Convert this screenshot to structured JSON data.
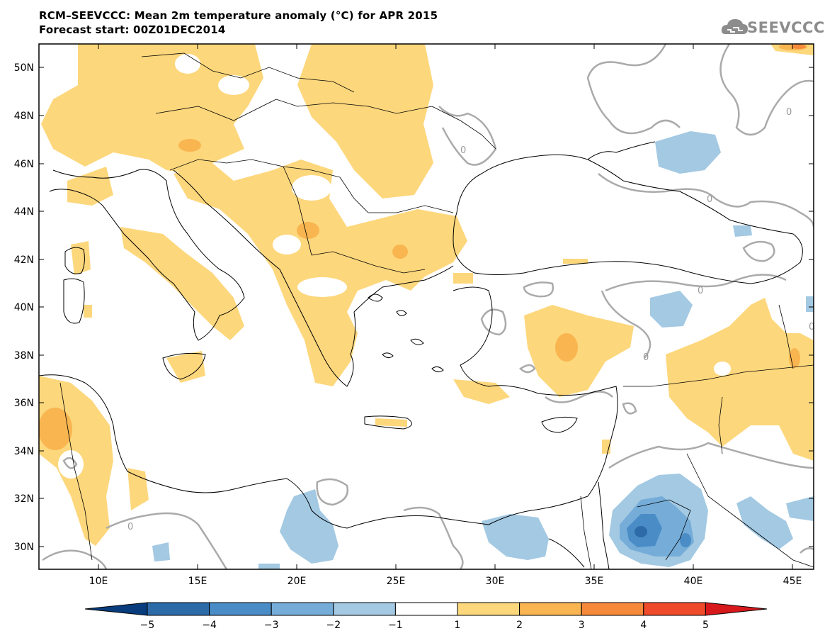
{
  "title": {
    "line1": "RCM–SEEVCCC: Mean 2m temperature anomaly (°C) for APR 2015",
    "line2": "Forecast start: 00Z01DEC2014"
  },
  "logo": {
    "text": "SEEVCCC",
    "icon": "cloud-icon"
  },
  "axes": {
    "lat_labels": [
      "50N",
      "48N",
      "46N",
      "44N",
      "42N",
      "40N",
      "38N",
      "36N",
      "34N",
      "32N",
      "30N"
    ],
    "lon_labels": [
      "10E",
      "15E",
      "20E",
      "25E",
      "30E",
      "35E",
      "40E",
      "45E"
    ]
  },
  "contour_labels": [
    "0",
    "0",
    "0",
    "0",
    "0",
    "0",
    "0"
  ],
  "colorbar": {
    "labels": [
      "−5",
      "−4",
      "−3",
      "−2",
      "−1",
      "1",
      "2",
      "3",
      "4",
      "5"
    ],
    "colors": [
      "#083c7c",
      "#2c6aa8",
      "#4a8cc6",
      "#75acd8",
      "#a3c9e3",
      "#ffffff",
      "#fdd77c",
      "#f9b550",
      "#f7893a",
      "#ef4a2a",
      "#d7191c"
    ]
  },
  "colors": {
    "warm1": "#fdd77c",
    "warm2": "#f9b550",
    "warm3": "#f7893a",
    "cool1": "#a3c9e3",
    "cool2": "#75acd8",
    "cool3": "#4a8cc6",
    "cool4": "#2c6aa8",
    "contour": "#aaaaaa"
  }
}
